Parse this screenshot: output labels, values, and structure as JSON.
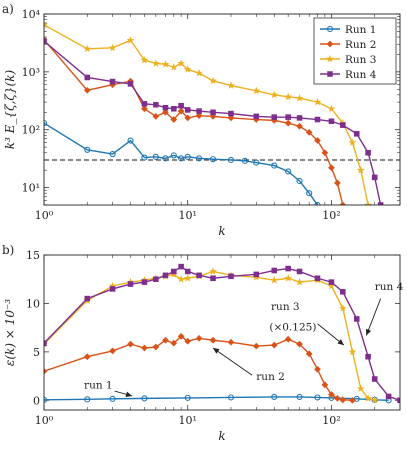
{
  "chart_data": [
    {
      "panel_label": "a)",
      "type": "line",
      "xlabel": "k",
      "ylabel": "k³ E_{ζ,ζ}(k)",
      "x_scale": "log",
      "y_scale": "log",
      "xlim": [
        1,
        300
      ],
      "ylim": [
        5,
        10000
      ],
      "x_ticks": [
        1,
        10,
        100
      ],
      "x_tick_labels": [
        "10⁰",
        "10¹",
        "10²"
      ],
      "y_ticks": [
        10,
        100,
        1000,
        10000
      ],
      "y_tick_labels": [
        "10¹",
        "10²",
        "10³",
        "10⁴"
      ],
      "legend": {
        "position": "top-right",
        "entries": [
          "Run 1",
          "Run 2",
          "Run 3",
          "Run 4"
        ]
      },
      "reference_line": {
        "y": 30,
        "style": "dashed",
        "color": "#444444"
      },
      "series": [
        {
          "name": "Run 1",
          "color": "#1f77b4",
          "marker": "circle",
          "x": [
            1,
            2,
            3,
            4,
            5,
            6,
            7,
            8,
            9,
            10,
            12,
            15,
            20,
            25,
            30,
            40,
            50,
            60,
            70,
            80
          ],
          "y": [
            130,
            45,
            38,
            65,
            33,
            34,
            32,
            36,
            32,
            34,
            32,
            31,
            30,
            29,
            27,
            24,
            19,
            13,
            8,
            5
          ]
        },
        {
          "name": "Run 2",
          "color": "#d95319",
          "marker": "diamond",
          "x": [
            1,
            2,
            3,
            4,
            5,
            6,
            7,
            8,
            9,
            10,
            12,
            15,
            20,
            30,
            40,
            50,
            60,
            70,
            80,
            90,
            100,
            110,
            120
          ],
          "y": [
            3600,
            480,
            600,
            690,
            230,
            170,
            200,
            150,
            210,
            160,
            175,
            170,
            160,
            150,
            145,
            130,
            115,
            90,
            65,
            40,
            22,
            12,
            5
          ]
        },
        {
          "name": "Run 3",
          "color": "#edb120",
          "marker": "star",
          "x": [
            1,
            2,
            3,
            4,
            5,
            6,
            7,
            8,
            9,
            10,
            12,
            15,
            20,
            30,
            40,
            50,
            60,
            80,
            100,
            120,
            140,
            160,
            180
          ],
          "y": [
            6500,
            2500,
            2600,
            3500,
            1600,
            1400,
            1350,
            1200,
            1400,
            1100,
            950,
            700,
            580,
            470,
            400,
            370,
            350,
            300,
            230,
            130,
            60,
            20,
            5
          ]
        },
        {
          "name": "Run 4",
          "color": "#7e2f8e",
          "marker": "square",
          "x": [
            1,
            2,
            3,
            4,
            5,
            6,
            7,
            8,
            9,
            10,
            12,
            15,
            20,
            30,
            40,
            50,
            60,
            80,
            100,
            120,
            150,
            180,
            200,
            220
          ],
          "y": [
            3400,
            800,
            680,
            620,
            280,
            270,
            240,
            230,
            260,
            220,
            210,
            200,
            190,
            170,
            165,
            165,
            160,
            150,
            140,
            120,
            85,
            40,
            15,
            5
          ]
        }
      ]
    },
    {
      "panel_label": "b)",
      "type": "line",
      "xlabel": "k",
      "ylabel": "ε(k) × 10⁻³",
      "x_scale": "log",
      "y_scale": "linear",
      "xlim": [
        1,
        300
      ],
      "ylim": [
        -1,
        15
      ],
      "x_ticks": [
        1,
        10,
        100
      ],
      "x_tick_labels": [
        "10⁰",
        "10¹",
        "10²"
      ],
      "y_ticks": [
        0,
        5,
        10,
        15
      ],
      "y_tick_labels": [
        "0",
        "5",
        "10",
        "15"
      ],
      "annotations": [
        {
          "text": "run 1",
          "series": "Run 1"
        },
        {
          "text": "run 2",
          "series": "Run 2"
        },
        {
          "text": "run 3",
          "series": "Run 3"
        },
        {
          "text": "(×0.125)",
          "series": "Run 3"
        },
        {
          "text": "run 4",
          "series": "Run 4"
        }
      ],
      "series": [
        {
          "name": "Run 1",
          "color": "#1f77b4",
          "marker": "circle",
          "x": [
            1,
            2,
            3,
            5,
            10,
            20,
            40,
            60,
            80,
            100,
            150,
            200,
            250
          ],
          "y": [
            0.05,
            0.1,
            0.15,
            0.2,
            0.25,
            0.3,
            0.35,
            0.35,
            0.3,
            0.25,
            0.15,
            0.05,
            0
          ]
        },
        {
          "name": "Run 2",
          "color": "#d95319",
          "marker": "diamond",
          "x": [
            1,
            2,
            3,
            4,
            5,
            6,
            7,
            8,
            9,
            10,
            12,
            15,
            20,
            30,
            40,
            50,
            60,
            70,
            80,
            90,
            100,
            110,
            120,
            140
          ],
          "y": [
            3.0,
            4.5,
            5.1,
            5.8,
            5.4,
            5.5,
            6.2,
            5.9,
            6.6,
            6.1,
            6.4,
            6.2,
            6.0,
            5.6,
            5.7,
            6.3,
            5.8,
            4.8,
            3.2,
            1.6,
            0.6,
            0.2,
            0.05,
            0
          ]
        },
        {
          "name": "Run 3",
          "color": "#edb120",
          "marker": "star",
          "x": [
            1,
            2,
            3,
            4,
            5,
            6,
            7,
            8,
            9,
            10,
            12,
            15,
            20,
            30,
            40,
            50,
            60,
            80,
            100,
            120,
            140,
            160,
            180,
            200
          ],
          "y": [
            5.8,
            10.3,
            11.8,
            12.2,
            12.4,
            12.6,
            12.8,
            13.0,
            12.5,
            12.6,
            12.8,
            13.3,
            12.9,
            12.7,
            12.4,
            12.6,
            12.2,
            12.4,
            11.8,
            9.5,
            5.0,
            1.2,
            0.2,
            0
          ]
        },
        {
          "name": "Run 4",
          "color": "#7e2f8e",
          "marker": "square",
          "x": [
            1,
            2,
            3,
            4,
            5,
            6,
            7,
            8,
            9,
            10,
            12,
            15,
            20,
            30,
            40,
            50,
            60,
            80,
            100,
            120,
            150,
            180,
            200,
            250,
            300
          ],
          "y": [
            5.9,
            10.5,
            11.5,
            12.0,
            12.2,
            12.5,
            12.9,
            13.3,
            13.8,
            13.3,
            12.9,
            12.6,
            12.8,
            13.0,
            13.4,
            13.6,
            13.3,
            12.6,
            12.2,
            11.2,
            8.4,
            4.5,
            2.2,
            0.4,
            0
          ]
        }
      ]
    }
  ]
}
